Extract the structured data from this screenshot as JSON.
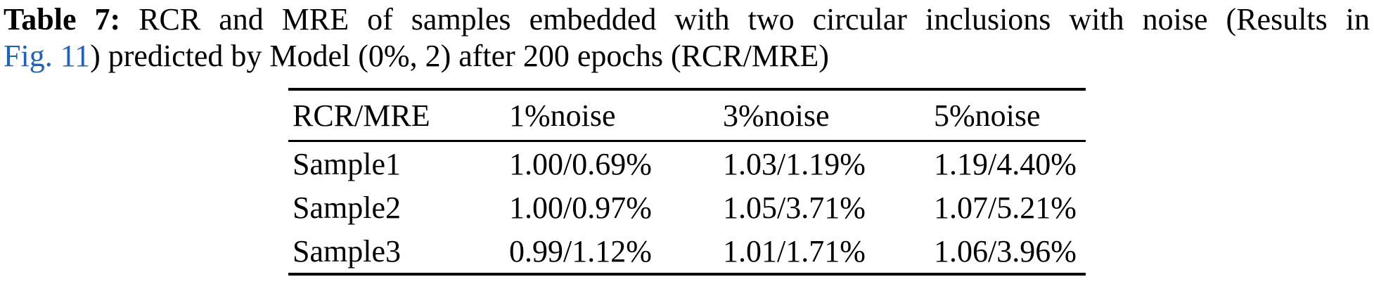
{
  "caption": {
    "bold_label": "Table 7:",
    "line1_rest": " RCR and MRE of samples embedded with two circular inclusions with noise (Results in",
    "link_text": "Fig. 11",
    "line2_rest": ") predicted by Model (0%, 2) after 200 epochs (RCR/MRE)"
  },
  "colors": {
    "text": "#000000",
    "link_blue": "#1c62c4",
    "background": "#ffffff",
    "rule": "#000000"
  },
  "chart_data": {
    "type": "table",
    "title": "Table 7: RCR and MRE of samples embedded with two circular inclusions with noise (Results in Fig. 11) predicted by Model (0%, 2) after 200 epochs (RCR/MRE)",
    "headers": [
      "RCR/MRE",
      "1%noise",
      "3%noise",
      "5%noise"
    ],
    "rows": [
      [
        "Sample1",
        "1.00/0.69%",
        "1.03/1.19%",
        "1.19/4.40%"
      ],
      [
        "Sample2",
        "1.00/0.97%",
        "1.05/3.71%",
        "1.07/5.21%"
      ],
      [
        "Sample3",
        "0.99/1.12%",
        "1.01/1.71%",
        "1.06/3.96%"
      ]
    ]
  }
}
